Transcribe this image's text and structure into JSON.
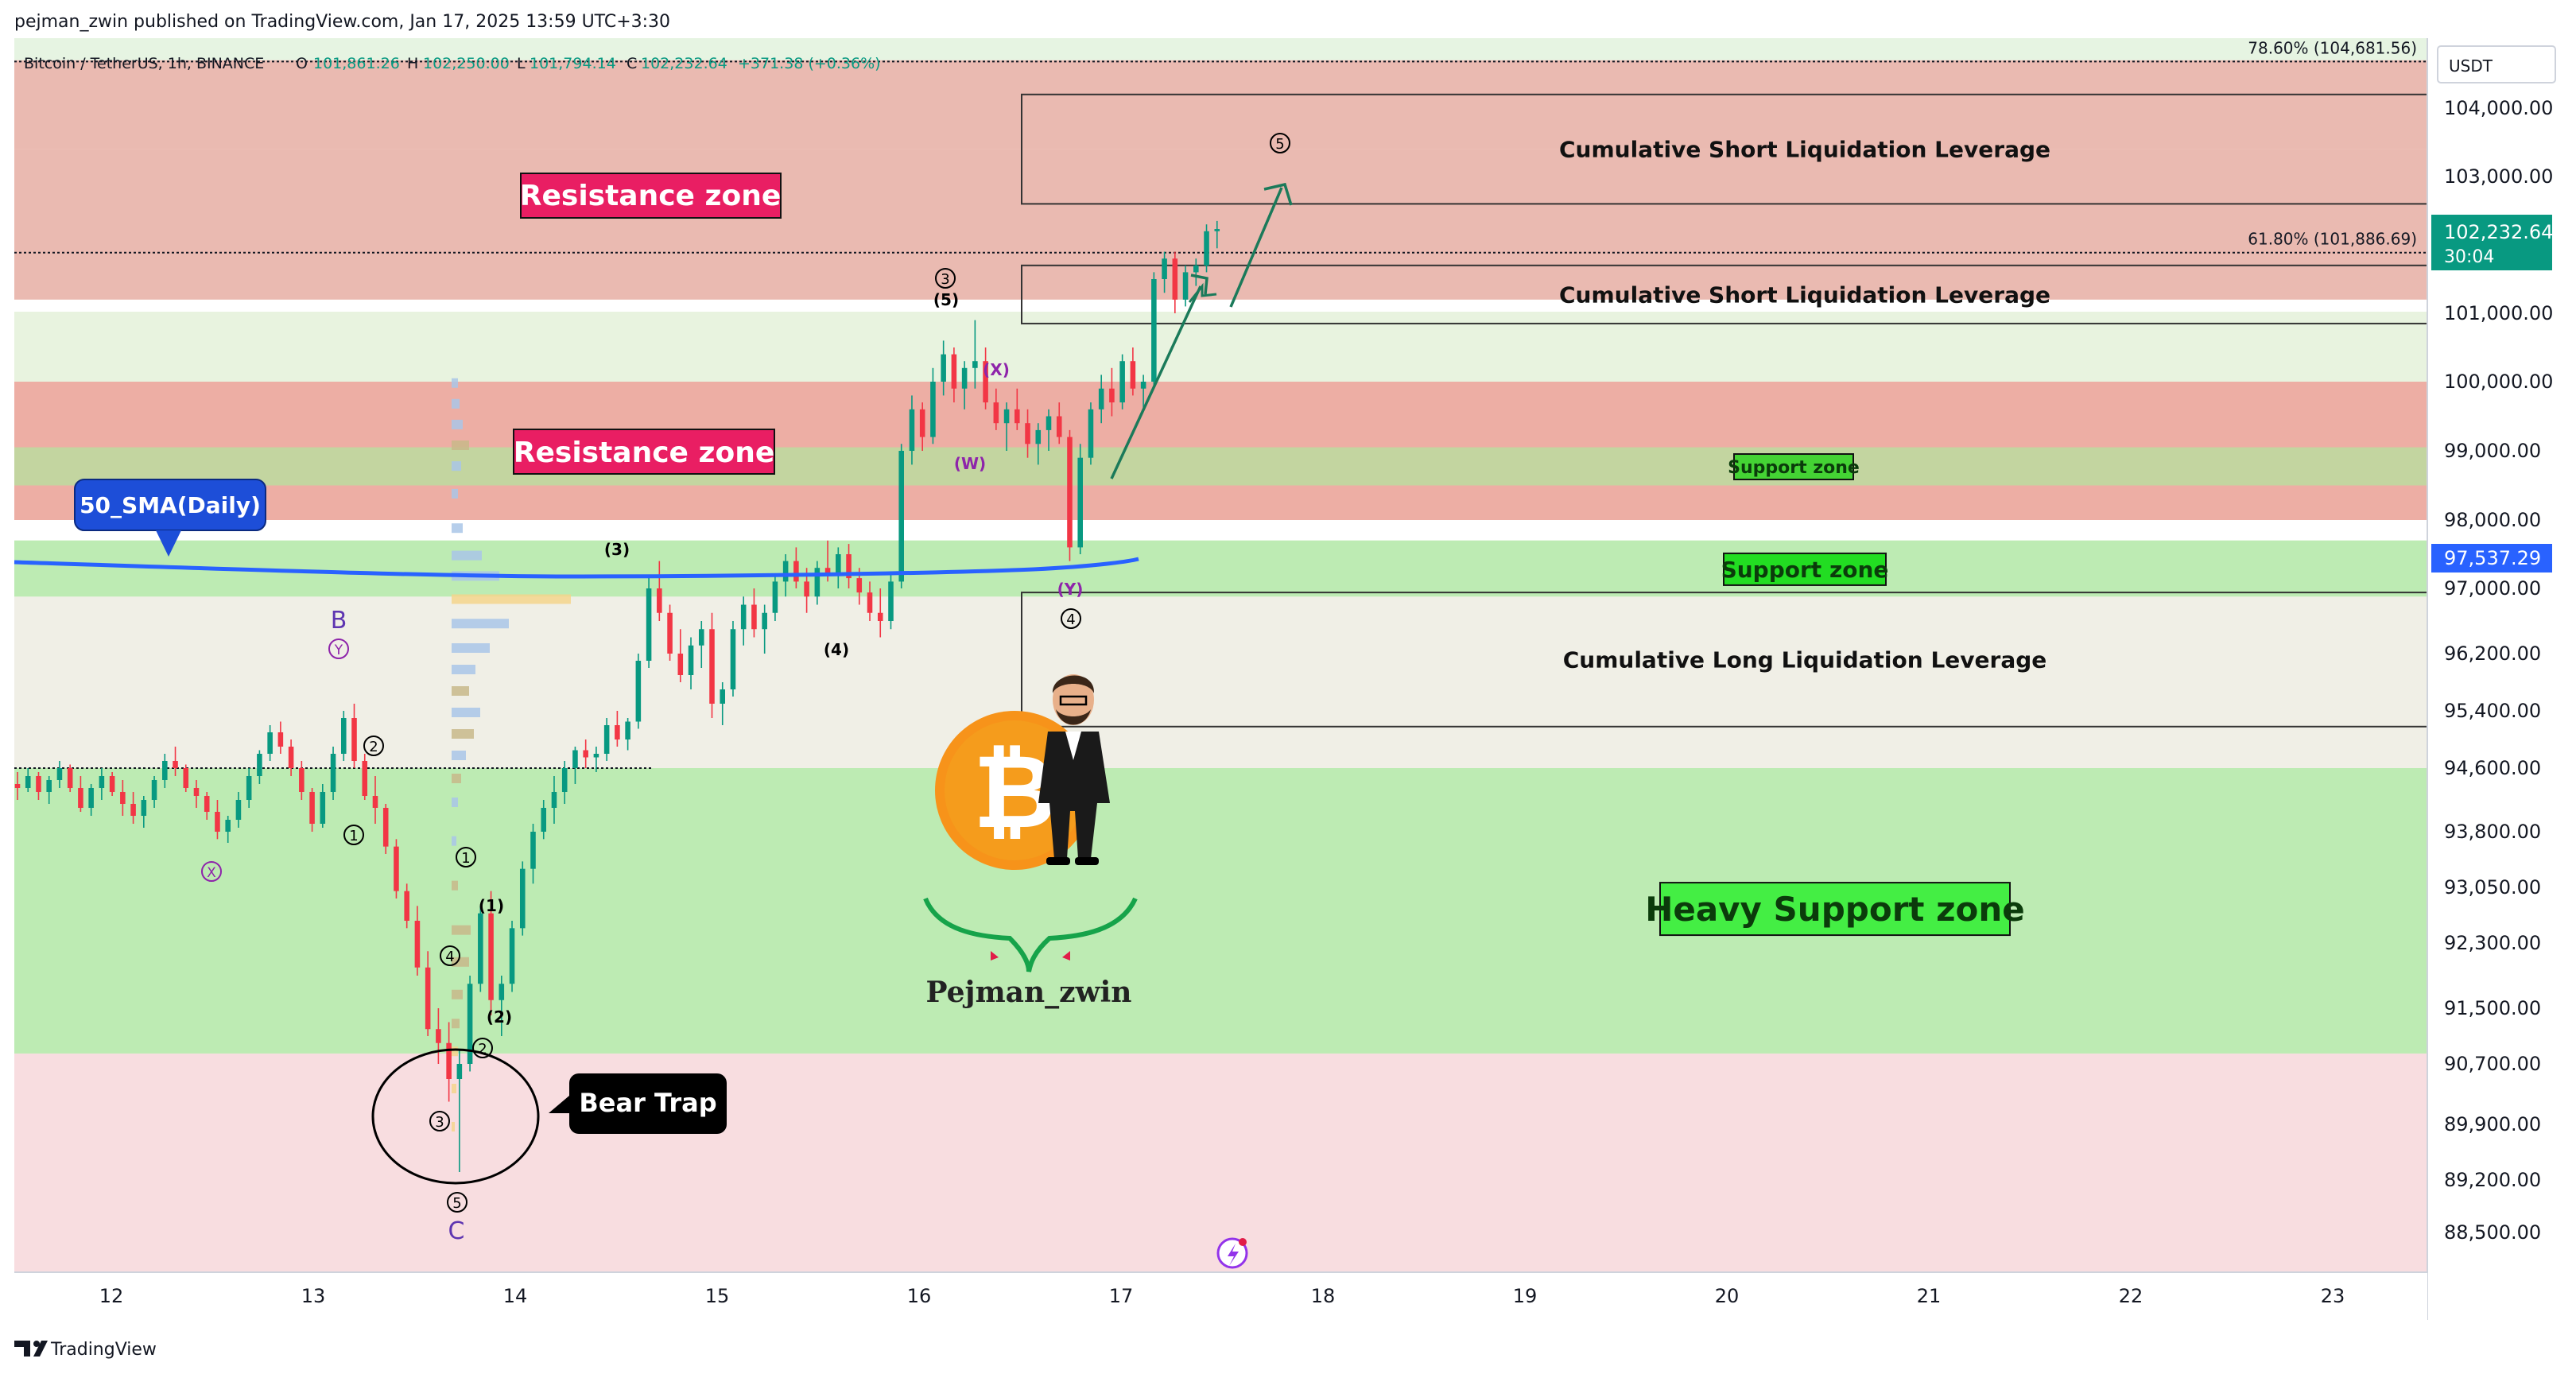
{
  "header": {
    "published": "pejman_zwin published on TradingView.com, Jan 17, 2025 13:59 UTC+3:30",
    "symbol": "Bitcoin / TetherUS, 1h, BINANCE",
    "o_label": "O",
    "o_value": "101,861.26",
    "h_label": "H",
    "h_value": "102,250.00",
    "l_label": "L",
    "l_value": "101,794.14",
    "c_label": "C",
    "c_value": "102,232.64",
    "change": "+371.38 (+0.36%)"
  },
  "footer": {
    "brand": "TradingView"
  },
  "colors": {
    "up": "#089981",
    "down": "#f23645",
    "sma": "#2962ff",
    "resistance_fill": "#e8a69c",
    "support_fill": "#b7e9a8",
    "price_tag": "#089981",
    "sma_tag": "#2962ff"
  },
  "chart_data": {
    "type": "candlestick",
    "currency": "USDT",
    "y_ticks": [
      "104,000.00",
      "103,000.00",
      "101,000.00",
      "100,000.00",
      "99,000.00",
      "98,000.00",
      "97,000.00",
      "96,200.00",
      "95,400.00",
      "94,600.00",
      "93,800.00",
      "93,050.00",
      "92,300.00",
      "91,500.00",
      "90,700.00",
      "89,900.00",
      "89,200.00",
      "88,500.00"
    ],
    "y_tick_values": [
      104000,
      103000,
      101000,
      100000,
      99000,
      98000,
      97000,
      96200,
      95400,
      94600,
      93800,
      93050,
      92300,
      91500,
      90700,
      89900,
      89200,
      88500
    ],
    "x_ticks": [
      "12",
      "13",
      "14",
      "15",
      "16",
      "17",
      "18",
      "19",
      "20",
      "21",
      "22",
      "23"
    ],
    "last_price": "102,232.64",
    "countdown": "30:04",
    "sma_value": "97,537.29",
    "fib_levels": [
      {
        "label": "78.60% (104,681.56)",
        "value": 104681.56
      },
      {
        "label": "61.80% (101,886.69)",
        "value": 101886.69
      }
    ],
    "zones": [
      {
        "type": "resistance",
        "from": 103400,
        "to": 104700
      },
      {
        "type": "resistance",
        "from": 101200,
        "to": 103400
      },
      {
        "type": "resistance",
        "from": 98000,
        "to": 100000
      },
      {
        "type": "support",
        "from": 98500,
        "to": 99050,
        "label": "Support zone"
      },
      {
        "type": "support",
        "from": 96900,
        "to": 97700,
        "label": "Support zone"
      },
      {
        "type": "support",
        "from": 90850,
        "to": 94600,
        "label": "Heavy Support zone"
      }
    ],
    "liquidation_boxes": [
      {
        "label": "Cumulative Short Liquidation Leverage",
        "from": 102600,
        "to": 104200
      },
      {
        "label": "Cumulative Short Liquidation Leverage",
        "from": 100850,
        "to": 101700
      },
      {
        "label": "Cumulative Long Liquidation Leverage",
        "from": 95180,
        "to": 96950
      }
    ],
    "labels": {
      "resistance_1": "Resistance zone",
      "resistance_2": "Resistance zone",
      "sma": "50_SMA(Daily)",
      "bear_trap": "Bear Trap",
      "author": "Pejman_zwin"
    },
    "wave_labels": [
      "B",
      "Y",
      "X",
      "1",
      "2",
      "C",
      "5",
      "3",
      "4",
      "1",
      "2",
      "(1)",
      "(2)",
      "(3)",
      "(4)",
      "(5)",
      "3",
      "(X)",
      "(W)",
      "(Y)",
      "4",
      "5"
    ],
    "candles_1h": [
      [
        94400,
        94550,
        94200,
        94350
      ],
      [
        94350,
        94600,
        94300,
        94500
      ],
      [
        94500,
        94550,
        94200,
        94300
      ],
      [
        94300,
        94500,
        94150,
        94450
      ],
      [
        94450,
        94700,
        94350,
        94600
      ],
      [
        94600,
        94650,
        94300,
        94350
      ],
      [
        94350,
        94500,
        94050,
        94100
      ],
      [
        94100,
        94400,
        94000,
        94350
      ],
      [
        94350,
        94600,
        94200,
        94500
      ],
      [
        94500,
        94550,
        94250,
        94300
      ],
      [
        94300,
        94450,
        94000,
        94150
      ],
      [
        94150,
        94300,
        93900,
        94000
      ],
      [
        94000,
        94250,
        93850,
        94200
      ],
      [
        94200,
        94500,
        94100,
        94450
      ],
      [
        94450,
        94800,
        94350,
        94700
      ],
      [
        94700,
        94900,
        94500,
        94600
      ],
      [
        94600,
        94650,
        94300,
        94350
      ],
      [
        94350,
        94450,
        94100,
        94250
      ],
      [
        94250,
        94300,
        93950,
        94050
      ],
      [
        94050,
        94200,
        93700,
        93800
      ],
      [
        93800,
        94000,
        93650,
        93950
      ],
      [
        93950,
        94300,
        93850,
        94200
      ],
      [
        94200,
        94600,
        94100,
        94500
      ],
      [
        94500,
        94850,
        94400,
        94800
      ],
      [
        94800,
        95200,
        94700,
        95100
      ],
      [
        95100,
        95250,
        94800,
        94900
      ],
      [
        94900,
        95000,
        94500,
        94600
      ],
      [
        94600,
        94700,
        94200,
        94300
      ],
      [
        94300,
        94350,
        93800,
        93900
      ],
      [
        93900,
        94400,
        93850,
        94300
      ],
      [
        94300,
        94900,
        94200,
        94800
      ],
      [
        94800,
        95400,
        94700,
        95300
      ],
      [
        95300,
        95500,
        94600,
        94700
      ],
      [
        94700,
        94800,
        94200,
        94250
      ],
      [
        94250,
        94500,
        93900,
        94100
      ],
      [
        94100,
        94150,
        93500,
        93600
      ],
      [
        93600,
        93700,
        92900,
        93000
      ],
      [
        93000,
        93100,
        92500,
        92600
      ],
      [
        92600,
        92800,
        91900,
        92000
      ],
      [
        92000,
        92200,
        91100,
        91200
      ],
      [
        91200,
        91500,
        90700,
        91000
      ],
      [
        91000,
        91300,
        90200,
        90500
      ],
      [
        90500,
        90900,
        89300,
        90700
      ],
      [
        90700,
        91900,
        90600,
        91800
      ],
      [
        91800,
        92800,
        91700,
        92700
      ],
      [
        92700,
        93000,
        91400,
        91600
      ],
      [
        91600,
        91900,
        91100,
        91800
      ],
      [
        91800,
        92600,
        91700,
        92500
      ],
      [
        92500,
        93400,
        92400,
        93300
      ],
      [
        93300,
        93900,
        93100,
        93800
      ],
      [
        93800,
        94200,
        93700,
        94100
      ],
      [
        94100,
        94500,
        93900,
        94300
      ],
      [
        94300,
        94700,
        94150,
        94600
      ],
      [
        94600,
        94900,
        94400,
        94850
      ],
      [
        94850,
        95000,
        94600,
        94750
      ],
      [
        94750,
        94900,
        94550,
        94800
      ],
      [
        94800,
        95300,
        94700,
        95200
      ],
      [
        95200,
        95400,
        94900,
        95000
      ],
      [
        95000,
        95300,
        94850,
        95250
      ],
      [
        95250,
        96200,
        95150,
        96100
      ],
      [
        96100,
        97200,
        96000,
        97000
      ],
      [
        97000,
        97400,
        96600,
        96700
      ],
      [
        96700,
        96800,
        96100,
        96200
      ],
      [
        96200,
        96500,
        95800,
        95900
      ],
      [
        95900,
        96400,
        95700,
        96300
      ],
      [
        96300,
        96600,
        96000,
        96500
      ],
      [
        96500,
        96700,
        95300,
        95500
      ],
      [
        95500,
        95800,
        95200,
        95700
      ],
      [
        95700,
        96600,
        95600,
        96500
      ],
      [
        96500,
        96900,
        96300,
        96800
      ],
      [
        96800,
        97000,
        96400,
        96500
      ],
      [
        96500,
        96800,
        96200,
        96700
      ],
      [
        96700,
        97200,
        96600,
        97100
      ],
      [
        97100,
        97500,
        96900,
        97400
      ],
      [
        97400,
        97600,
        97000,
        97100
      ],
      [
        97100,
        97300,
        96700,
        96900
      ],
      [
        96900,
        97400,
        96800,
        97300
      ],
      [
        97300,
        97700,
        97100,
        97200
      ],
      [
        97200,
        97600,
        97000,
        97500
      ],
      [
        97500,
        97650,
        97000,
        97150
      ],
      [
        97150,
        97300,
        96800,
        96950
      ],
      [
        96950,
        97100,
        96600,
        96700
      ],
      [
        96700,
        97000,
        96400,
        96600
      ],
      [
        96600,
        97200,
        96500,
        97100
      ],
      [
        97100,
        99100,
        97000,
        99000
      ],
      [
        99000,
        99800,
        98800,
        99600
      ],
      [
        99600,
        99700,
        99000,
        99200
      ],
      [
        99200,
        100200,
        99100,
        100000
      ],
      [
        100000,
        100600,
        99800,
        100400
      ],
      [
        100400,
        100500,
        99700,
        99900
      ],
      [
        99900,
        100300,
        99600,
        100200
      ],
      [
        100200,
        100900,
        99900,
        100300
      ],
      [
        100300,
        100500,
        99600,
        99700
      ],
      [
        99700,
        99900,
        99300,
        99400
      ],
      [
        99400,
        99700,
        99000,
        99600
      ],
      [
        99600,
        99900,
        99300,
        99400
      ],
      [
        99400,
        99600,
        98900,
        99100
      ],
      [
        99100,
        99400,
        98800,
        99300
      ],
      [
        99300,
        99600,
        99000,
        99500
      ],
      [
        99500,
        99700,
        99100,
        99200
      ],
      [
        99200,
        99300,
        97400,
        97600
      ],
      [
        97600,
        99100,
        97500,
        98900
      ],
      [
        98900,
        99700,
        98800,
        99600
      ],
      [
        99600,
        100100,
        99400,
        99900
      ],
      [
        99900,
        100200,
        99500,
        99700
      ],
      [
        99700,
        100400,
        99600,
        100300
      ],
      [
        100300,
        100500,
        99800,
        99900
      ],
      [
        99900,
        100100,
        99600,
        100000
      ],
      [
        100000,
        101600,
        99900,
        101500
      ],
      [
        101500,
        101900,
        101300,
        101800
      ],
      [
        101800,
        101900,
        101000,
        101200
      ],
      [
        101200,
        101700,
        101100,
        101600
      ],
      [
        101600,
        101800,
        101400,
        101700
      ],
      [
        101700,
        102300,
        101600,
        102200
      ],
      [
        102200,
        102350,
        101950,
        102232
      ]
    ]
  }
}
